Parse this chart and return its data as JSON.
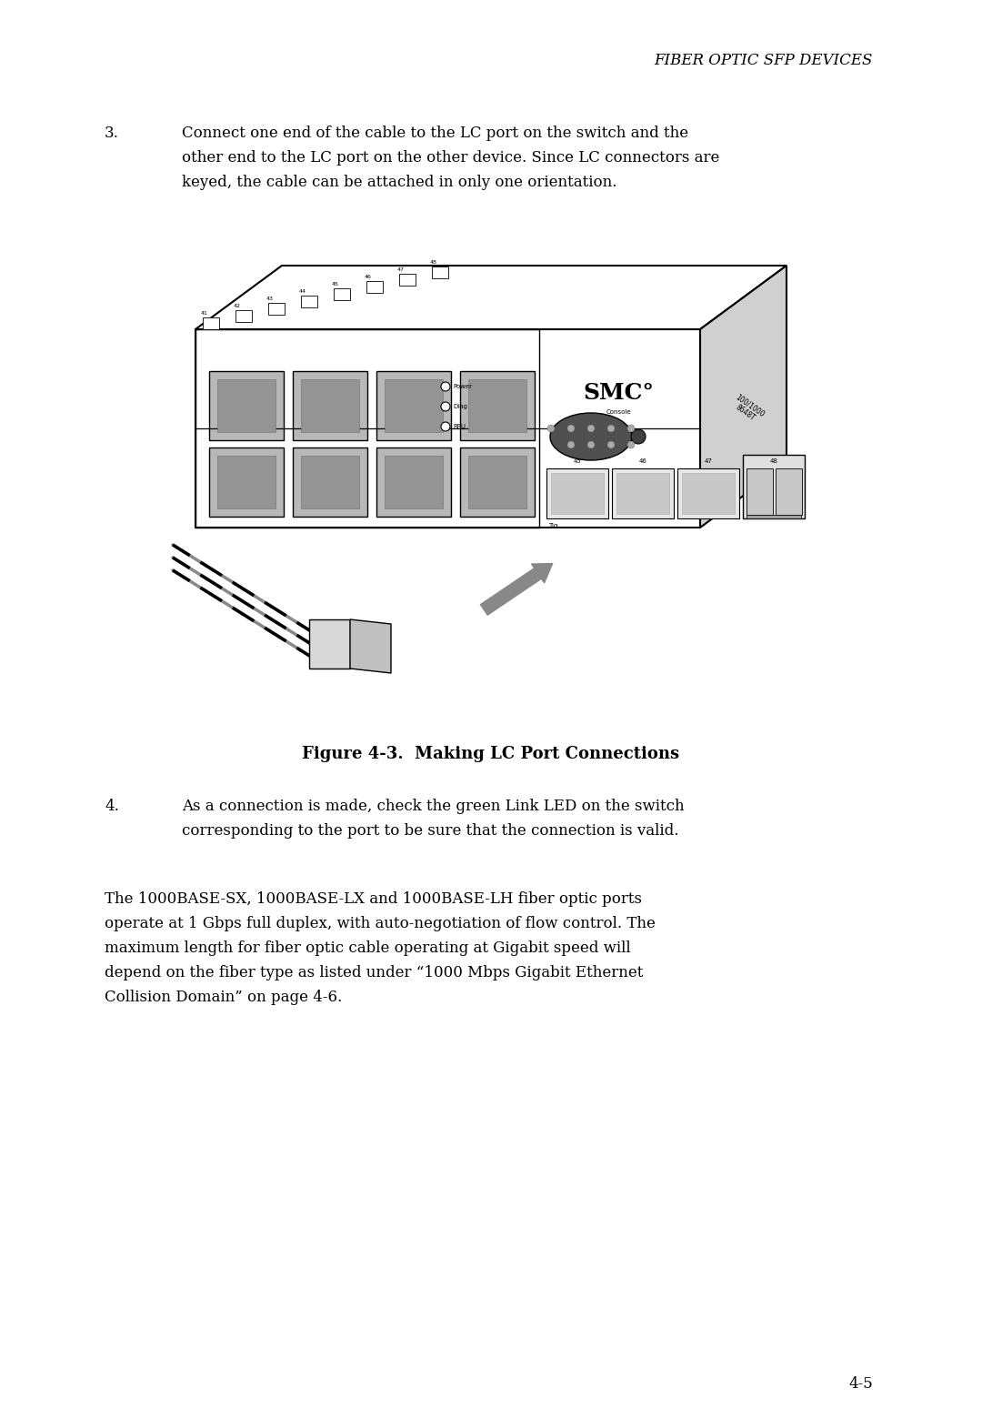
{
  "background_color": "#ffffff",
  "page_width": 10.8,
  "page_height": 15.7,
  "text_color": "#000000",
  "header_text": "FIBER OPTIC SFP DEVICES",
  "item3_number": "3.",
  "item3_line1": "Connect one end of the cable to the LC port on the switch and the",
  "item3_line2": "other end to the LC port on the other device. Since LC connectors are",
  "item3_line3": "keyed, the cable can be attached in only one orientation.",
  "figure_caption": "Figure 4-3.  Making LC Port Connections",
  "item4_number": "4.",
  "item4_line1": "As a connection is made, check the green Link LED on the switch",
  "item4_line2": "corresponding to the port to be sure that the connection is valid.",
  "para_line1": "The 1000BASE-SX, 1000BASE-LX and 1000BASE-LH fiber optic ports",
  "para_line2": "operate at 1 Gbps full duplex, with auto-negotiation of flow control. The",
  "para_line3": "maximum length for fiber optic cable operating at Gigabit speed will",
  "para_line4": "depend on the fiber type as listed under “1000 Mbps Gigabit Ethernet",
  "para_line5": "Collision Domain” on page 4-6.",
  "page_number": "4-5"
}
